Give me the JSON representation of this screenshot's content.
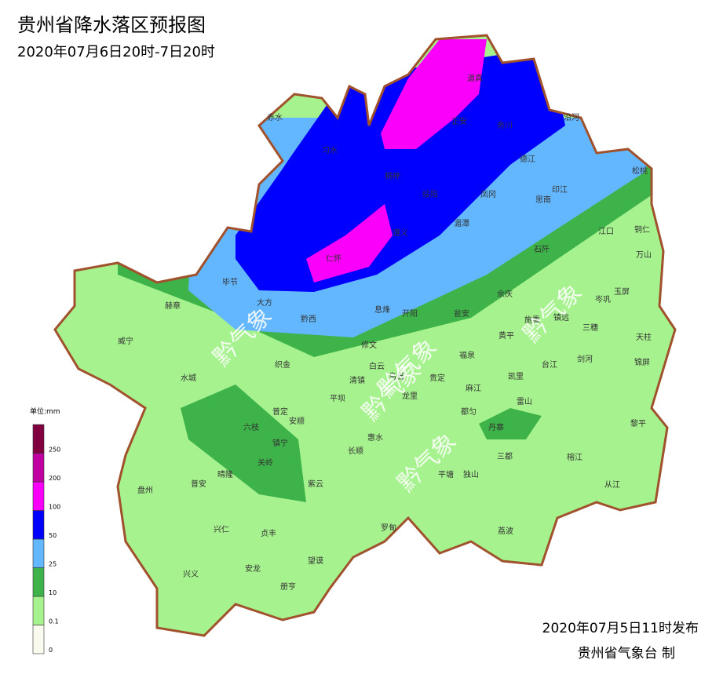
{
  "header": {
    "title": "贵州省降水落区预报图",
    "subtitle": "2020年07月6日20时-7日20时"
  },
  "legend": {
    "unit": "单位:mm",
    "ticks": [
      "0",
      "0.1",
      "10",
      "25",
      "50",
      "100",
      "200",
      "250"
    ],
    "colors": [
      "#fafaee",
      "#a6f28e",
      "#3db34a",
      "#63b7ff",
      "#0000fe",
      "#fa00fa",
      "#c000a0",
      "#800040"
    ]
  },
  "places": [
    "赤水",
    "习水",
    "桐梓",
    "道真",
    "正安",
    "务川",
    "沿河",
    "德江",
    "印江",
    "松桃",
    "思南",
    "凤冈",
    "绥阳",
    "湄潭",
    "遵义",
    "仁怀",
    "江口",
    "铜仁",
    "万山",
    "石阡",
    "毕节",
    "大方",
    "黔西",
    "赫章",
    "余庆",
    "玉屏",
    "岑巩",
    "施秉",
    "镇远",
    "三穗",
    "天柱",
    "息烽",
    "开阳",
    "瓮安",
    "黄平",
    "威宁",
    "织金",
    "修文",
    "清镇",
    "白云",
    "乌当",
    "福泉",
    "剑河",
    "台江",
    "锦屏",
    "凯里",
    "贵定",
    "龙里",
    "麻江",
    "水城",
    "平坝",
    "普定",
    "安顺",
    "六枝",
    "都匀",
    "雷山",
    "丹寨",
    "黎平",
    "惠水",
    "长顺",
    "镇宁",
    "关岭",
    "三都",
    "榕江",
    "独山",
    "平塘",
    "紫云",
    "晴隆",
    "普安",
    "盘州",
    "从江",
    "兴仁",
    "贞丰",
    "罗甸",
    "荔波",
    "望谟",
    "兴义",
    "安龙",
    "册亨"
  ],
  "watermarks": [
    "黔气象",
    "黔气象",
    "黔气象",
    "黔气象",
    "黔气象"
  ],
  "footer": {
    "issued": "2020年07月5日11时发布",
    "agency": "贵州省气象台  制"
  }
}
